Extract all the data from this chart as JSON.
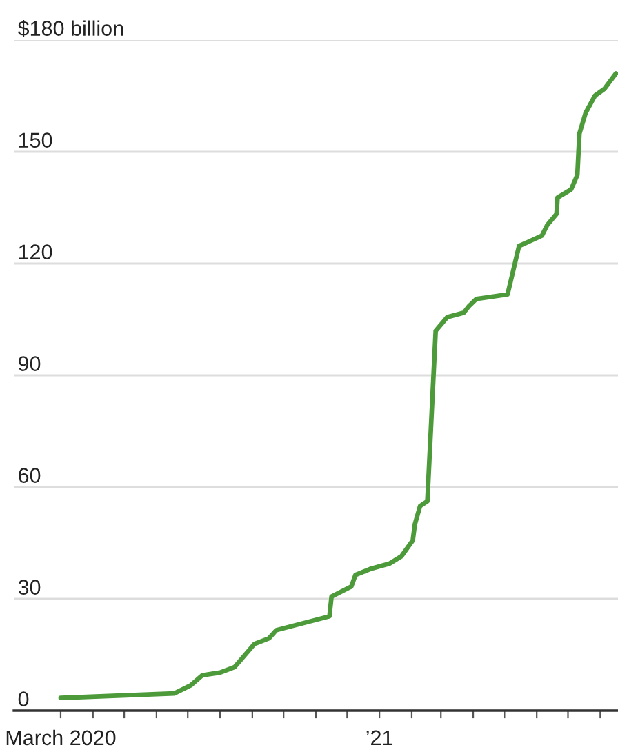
{
  "chart_data": {
    "type": "line",
    "x": [
      "2020-03-01",
      "2020-06-18",
      "2020-07-04",
      "2020-07-15",
      "2020-08-01",
      "2020-08-15",
      "2020-09-03",
      "2020-09-17",
      "2020-09-24",
      "2020-11-14",
      "2020-11-16",
      "2020-12-05",
      "2020-12-09",
      "2020-12-23",
      "2021-01-11",
      "2021-01-22",
      "2021-02-02",
      "2021-02-04",
      "2021-02-09",
      "2021-02-16",
      "2021-02-24",
      "2021-03-07",
      "2021-03-23",
      "2021-03-28",
      "2021-04-04",
      "2021-04-09",
      "2021-05-04",
      "2021-05-15",
      "2021-06-06",
      "2021-06-11",
      "2021-06-20",
      "2021-06-21",
      "2021-07-04",
      "2021-07-10",
      "2021-07-12",
      "2021-07-18",
      "2021-07-27",
      "2021-08-05",
      "2021-08-16"
    ],
    "series": [
      {
        "color": "#4c9a3a",
        "values": [
          3.4,
          4.6,
          6.8,
          9.5,
          10.2,
          11.7,
          17.9,
          19.4,
          21.6,
          25.3,
          30.6,
          33.3,
          36.4,
          38.0,
          39.5,
          41.4,
          45.7,
          50,
          54.9,
          56.2,
          101.9,
          105.6,
          106.8,
          108.6,
          110.5,
          110.7,
          111.7,
          124.7,
          127.5,
          130.3,
          133.3,
          137.7,
          139.9,
          143.8,
          154.9,
          160.5,
          165.1,
          166.9,
          171
        ]
      }
    ],
    "xlim": [
      "2020-01-16",
      "2021-08-18"
    ],
    "xticks": [
      {
        "value": "2020-03-01",
        "label": "March 2020"
      },
      {
        "value": "2020-04-01",
        "label": null
      },
      {
        "value": "2020-05-01",
        "label": null
      },
      {
        "value": "2020-06-01",
        "label": null
      },
      {
        "value": "2020-07-01",
        "label": null
      },
      {
        "value": "2020-08-01",
        "label": null
      },
      {
        "value": "2020-09-01",
        "label": null
      },
      {
        "value": "2020-10-01",
        "label": null
      },
      {
        "value": "2020-11-01",
        "label": null
      },
      {
        "value": "2020-12-01",
        "label": null
      },
      {
        "value": "2021-01-01",
        "label": "’21"
      },
      {
        "value": "2021-02-01",
        "label": null
      },
      {
        "value": "2021-03-01",
        "label": null
      },
      {
        "value": "2021-04-01",
        "label": null
      },
      {
        "value": "2021-05-01",
        "label": null
      },
      {
        "value": "2021-06-01",
        "label": null
      },
      {
        "value": "2021-07-01",
        "label": null
      },
      {
        "value": "2021-08-01",
        "label": null
      }
    ],
    "ylim": [
      0,
      180
    ],
    "yticks": [
      0,
      30,
      60,
      90,
      120,
      150,
      {
        "value": 180,
        "label": "$180 billion"
      }
    ],
    "grid": "y"
  }
}
